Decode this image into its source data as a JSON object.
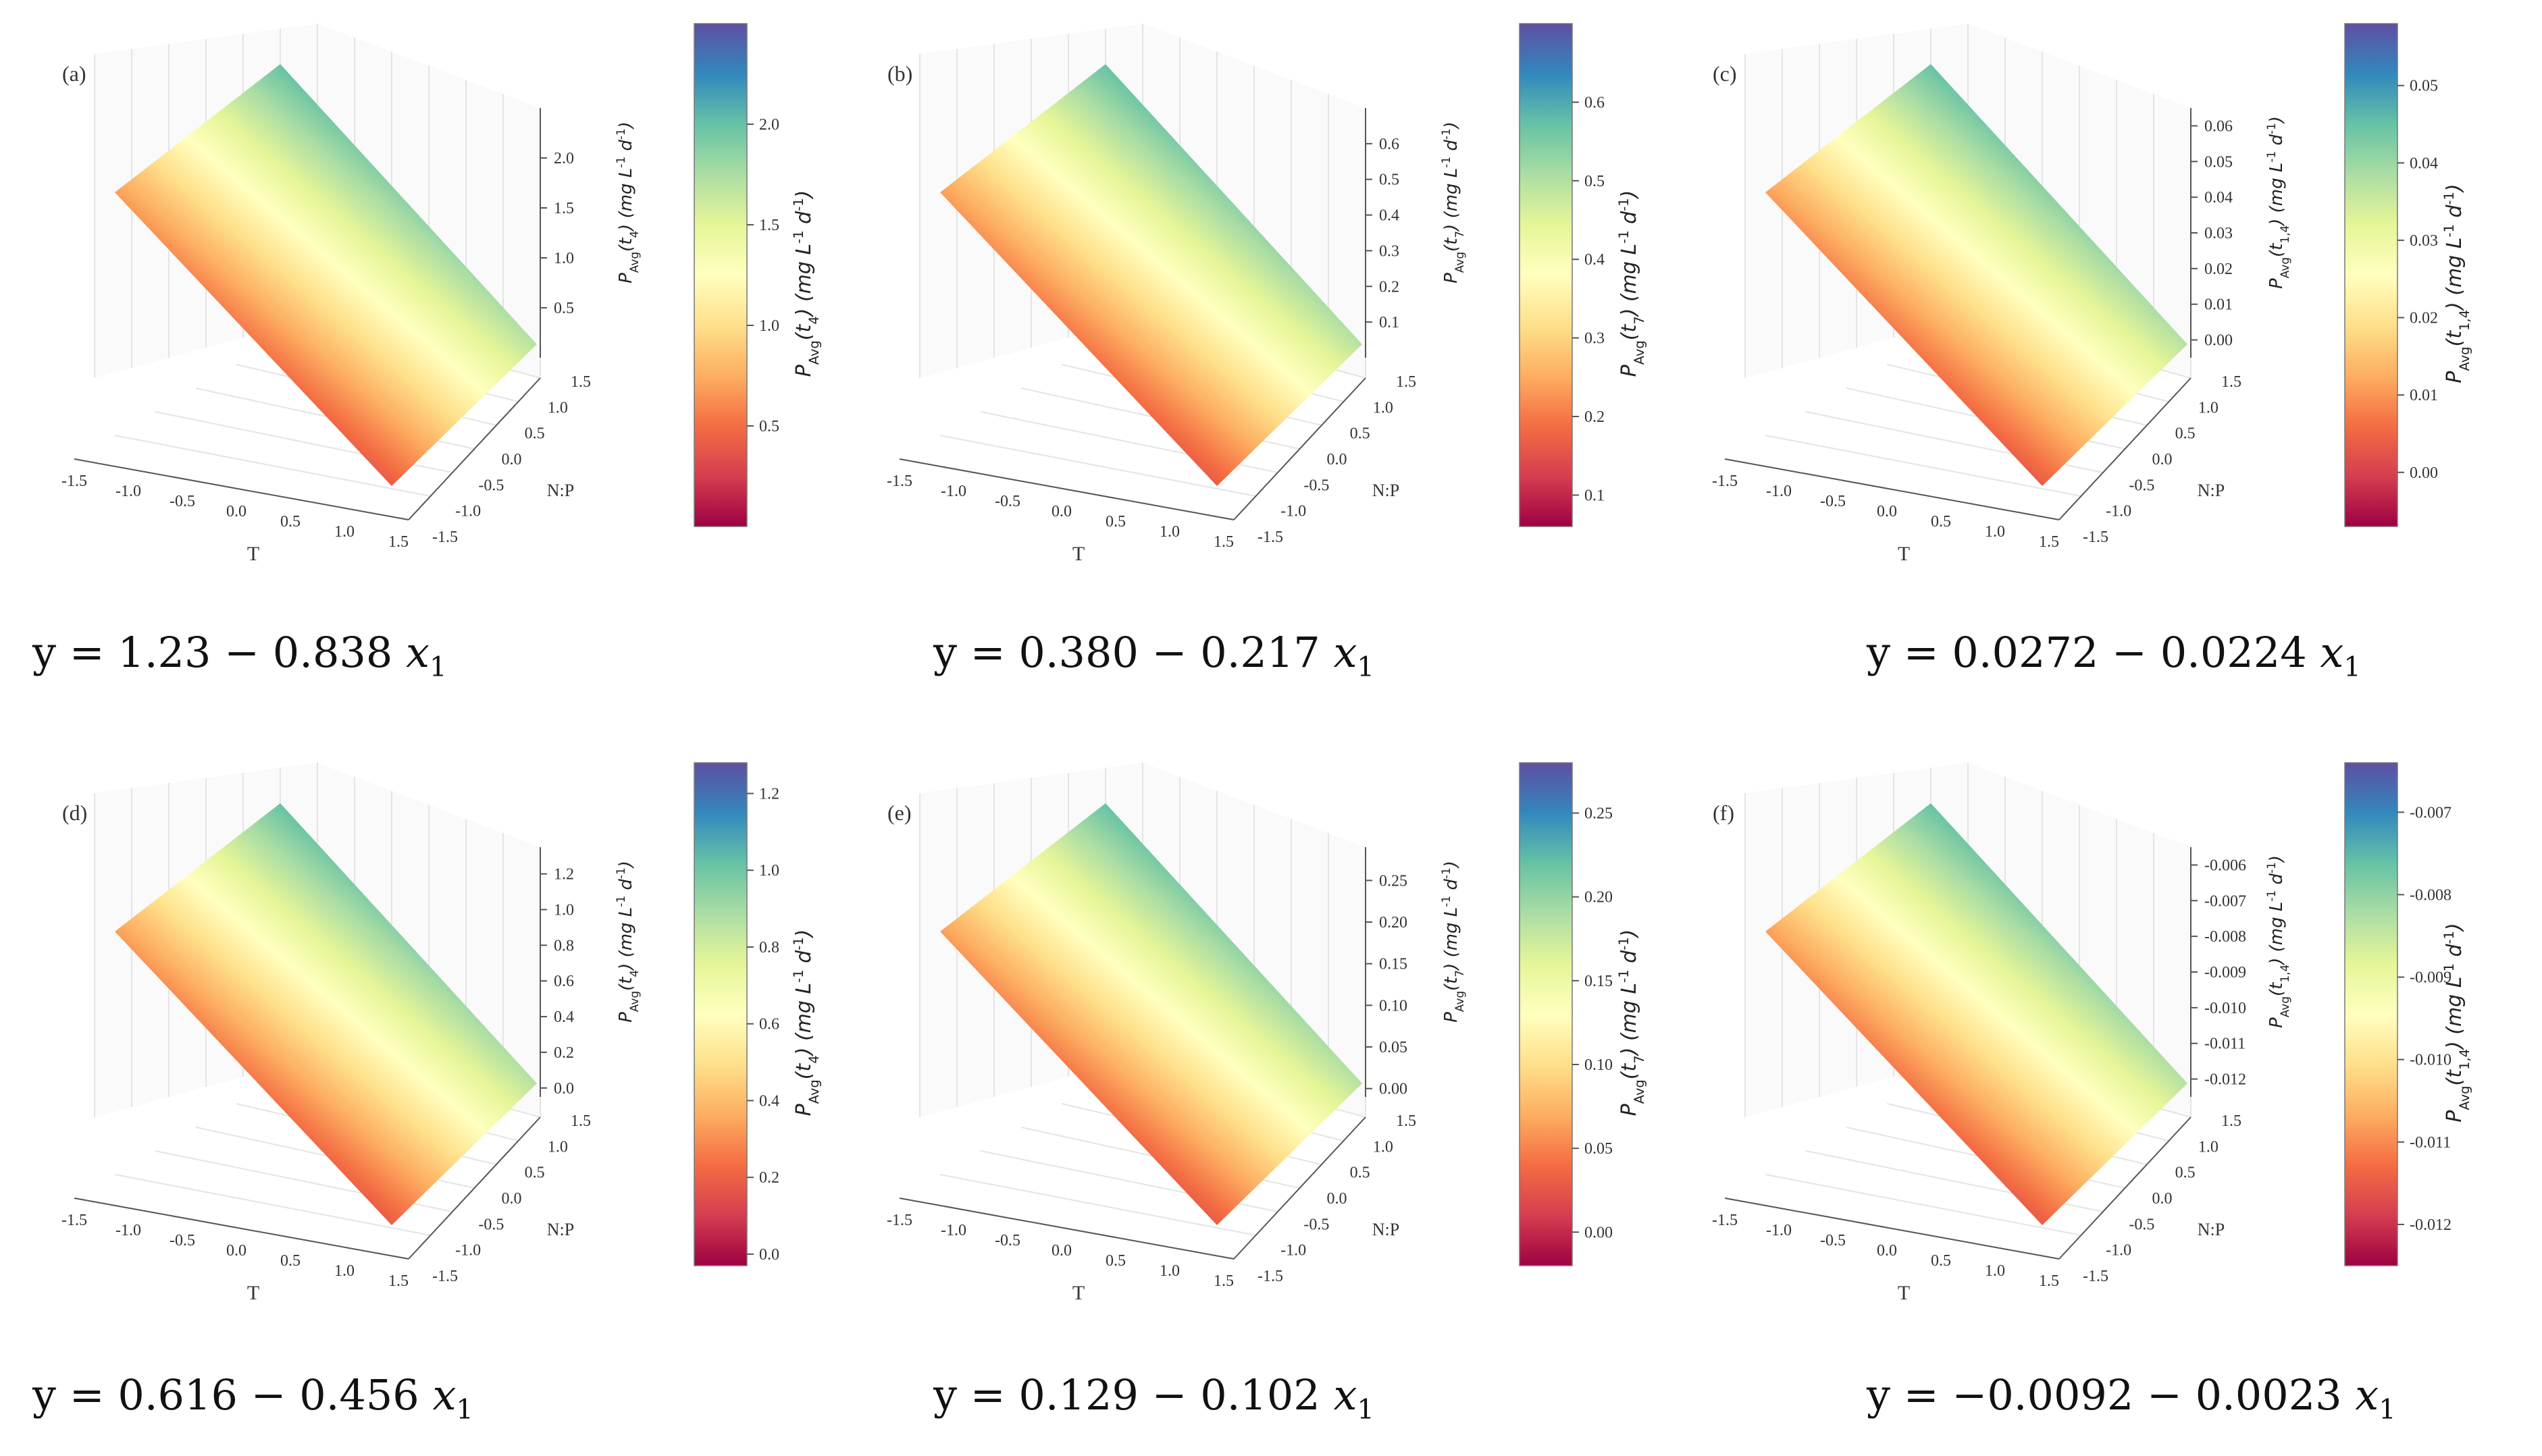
{
  "palette": [
    "#9e0142",
    "#d53e4f",
    "#f46d43",
    "#fdae61",
    "#fee08b",
    "#ffffbf",
    "#e6f598",
    "#abdda4",
    "#66c2a5",
    "#3288bd",
    "#5e4fa2"
  ],
  "chart_data": [
    {
      "type": "surface3d",
      "panel_label": "(a)",
      "xlabel": "T",
      "ylabel": "N:P",
      "zlabel": "P_Avg(t_4) (mg L^-1 d^-1)",
      "colorbar_label": "P_Avg(t_4) (mg L^-1 d^-1)",
      "x_ticks": [
        "-1.5",
        "-1.0",
        "-0.5",
        "0.0",
        "0.5",
        "1.0",
        "1.5"
      ],
      "y_ticks": [
        "-1.5",
        "-1.0",
        "-0.5",
        "0.0",
        "0.5",
        "1.0",
        "1.5"
      ],
      "z_ticks": [
        "0.5",
        "1.0",
        "1.5",
        "2.0"
      ],
      "z_range": [
        0.0,
        2.5
      ],
      "colorbar_ticks": [
        "0.5",
        "1.0",
        "1.5",
        "2.0"
      ],
      "colorbar_range": [
        0.0,
        2.5
      ],
      "intercept": 1.23,
      "slope_x1": -0.838,
      "equation": {
        "lhs": "y = 1.23 − 0.838 ",
        "var": "x",
        "sub": "1"
      }
    },
    {
      "type": "surface3d",
      "panel_label": "(b)",
      "xlabel": "T",
      "ylabel": "N:P",
      "zlabel": "P_Avg(t_7) (mg L^-1 d^-1)",
      "colorbar_label": "P_Avg(t_7) (mg L^-1 d^-1)",
      "x_ticks": [
        "-1.5",
        "-1.0",
        "-0.5",
        "0.0",
        "0.5",
        "1.0",
        "1.5"
      ],
      "y_ticks": [
        "-1.5",
        "-1.0",
        "-0.5",
        "0.0",
        "0.5",
        "1.0",
        "1.5"
      ],
      "z_ticks": [
        "0.1",
        "0.2",
        "0.3",
        "0.4",
        "0.5",
        "0.6"
      ],
      "z_range": [
        0.0,
        0.7
      ],
      "colorbar_ticks": [
        "0.1",
        "0.2",
        "0.3",
        "0.4",
        "0.5",
        "0.6"
      ],
      "colorbar_range": [
        0.06,
        0.7
      ],
      "intercept": 0.38,
      "slope_x1": -0.217,
      "equation": {
        "lhs": "y = 0.380 − 0.217 ",
        "var": "x",
        "sub": "1"
      }
    },
    {
      "type": "surface3d",
      "panel_label": "(c)",
      "xlabel": "T",
      "ylabel": "N:P",
      "zlabel": "P_Avg(t_1,4) (mg L^-1 d^-1)",
      "colorbar_label": "P_Avg(t_1,4) (mg L^-1 d^-1)",
      "x_ticks": [
        "-1.5",
        "-1.0",
        "-0.5",
        "0.0",
        "0.5",
        "1.0",
        "1.5"
      ],
      "y_ticks": [
        "-1.5",
        "-1.0",
        "-0.5",
        "0.0",
        "0.5",
        "1.0",
        "1.5"
      ],
      "z_ticks": [
        "0.00",
        "0.01",
        "0.02",
        "0.03",
        "0.04",
        "0.05",
        "0.06"
      ],
      "z_range": [
        -0.005,
        0.065
      ],
      "colorbar_ticks": [
        "0.00",
        "0.01",
        "0.02",
        "0.03",
        "0.04",
        "0.05"
      ],
      "colorbar_range": [
        -0.007,
        0.058
      ],
      "intercept": 0.0272,
      "slope_x1": -0.0224,
      "equation": {
        "lhs": "y = 0.0272 − 0.0224 ",
        "var": "x",
        "sub": "1"
      }
    },
    {
      "type": "surface3d",
      "panel_label": "(d)",
      "xlabel": "T",
      "ylabel": "N:P",
      "zlabel": "P_Avg(t_4) (mg L^-1 d^-1)",
      "colorbar_label": "P_Avg(t_4) (mg L^-1 d^-1)",
      "x_ticks": [
        "-1.5",
        "-1.0",
        "-0.5",
        "0.0",
        "0.5",
        "1.0",
        "1.5"
      ],
      "y_ticks": [
        "-1.5",
        "-1.0",
        "-0.5",
        "0.0",
        "0.5",
        "1.0",
        "1.5"
      ],
      "z_ticks": [
        "0.0",
        "0.2",
        "0.4",
        "0.6",
        "0.8",
        "1.0",
        "1.2"
      ],
      "z_range": [
        -0.05,
        1.35
      ],
      "colorbar_ticks": [
        "0.0",
        "0.2",
        "0.4",
        "0.6",
        "0.8",
        "1.0",
        "1.2"
      ],
      "colorbar_range": [
        -0.03,
        1.28
      ],
      "intercept": 0.616,
      "slope_x1": -0.456,
      "equation": {
        "lhs": "y = 0.616 − 0.456 ",
        "var": "x",
        "sub": "1"
      }
    },
    {
      "type": "surface3d",
      "panel_label": "(e)",
      "xlabel": "T",
      "ylabel": "N:P",
      "zlabel": "P_Avg(t_7) (mg L^-1 d^-1)",
      "colorbar_label": "P_Avg(t_7) (mg L^-1 d^-1)",
      "x_ticks": [
        "-1.5",
        "-1.0",
        "-0.5",
        "0.0",
        "0.5",
        "1.0",
        "1.5"
      ],
      "y_ticks": [
        "-1.5",
        "-1.0",
        "-0.5",
        "0.0",
        "0.5",
        "1.0",
        "1.5"
      ],
      "z_ticks": [
        "0.00",
        "0.05",
        "0.10",
        "0.15",
        "0.20",
        "0.25"
      ],
      "z_range": [
        -0.01,
        0.29
      ],
      "colorbar_ticks": [
        "0.00",
        "0.05",
        "0.10",
        "0.15",
        "0.20",
        "0.25"
      ],
      "colorbar_range": [
        -0.02,
        0.28
      ],
      "intercept": 0.129,
      "slope_x1": -0.102,
      "equation": {
        "lhs": "y = 0.129 − 0.102 ",
        "var": "x",
        "sub": "1"
      }
    },
    {
      "type": "surface3d",
      "panel_label": "(f)",
      "xlabel": "T",
      "ylabel": "N:P",
      "zlabel": "P_Avg(t_1,4) (mg L^-1 d^-1)",
      "colorbar_label": "P_Avg(t_1,4) (mg L^-1 d^-1)",
      "x_ticks": [
        "-1.5",
        "-1.0",
        "-0.5",
        "0.0",
        "0.5",
        "1.0",
        "1.5"
      ],
      "y_ticks": [
        "-1.5",
        "-1.0",
        "-0.5",
        "0.0",
        "0.5",
        "1.0",
        "1.5"
      ],
      "z_ticks": [
        "-0.012",
        "-0.011",
        "-0.010",
        "-0.009",
        "-0.008",
        "-0.007",
        "-0.006"
      ],
      "z_range": [
        -0.0125,
        -0.0055
      ],
      "colorbar_ticks": [
        "-0.012",
        "-0.011",
        "-0.010",
        "-0.009",
        "-0.008",
        "-0.007"
      ],
      "colorbar_range": [
        -0.0125,
        -0.0064
      ],
      "intercept": -0.0092,
      "slope_x1": -0.0023,
      "equation": {
        "lhs": "y = −0.0092 − 0.0023 ",
        "var": "x",
        "sub": "1"
      }
    }
  ]
}
